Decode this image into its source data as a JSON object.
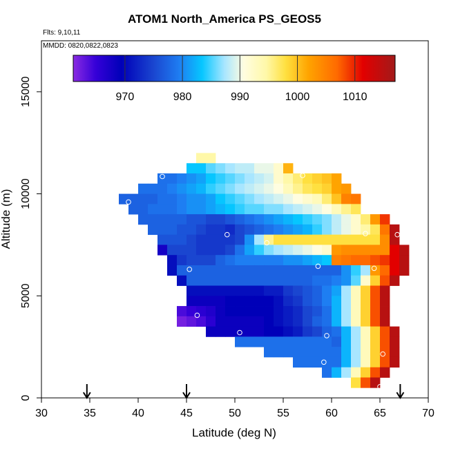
{
  "chart_data": {
    "type": "heatmap",
    "title": "ATOM1 North_America PS_GEOS5",
    "notes": {
      "flights": "Flts: 9,10,11",
      "dates": "MMDD: 0820,0822,0823"
    },
    "xlabel": "Latitude (deg N)",
    "ylabel": "Altitude (m)",
    "xlim": [
      30,
      70
    ],
    "ylim": [
      0,
      17500
    ],
    "x_ticks": [
      30,
      35,
      40,
      45,
      50,
      55,
      60,
      65,
      70
    ],
    "y_ticks": [
      0,
      5000,
      10000,
      15000
    ],
    "y_tick_labels": [
      "0",
      "5000",
      "10000",
      "15000"
    ],
    "colorbar": {
      "min": 961,
      "max": 1017,
      "ticks": [
        970,
        980,
        990,
        1000,
        1010
      ],
      "tick_labels": [
        "970",
        "980",
        "990",
        "1000",
        "1010"
      ]
    },
    "cell": {
      "dlat": 1.0,
      "dalt": 500
    },
    "profile_markers_lat": [
      34.7,
      45.0,
      67.1
    ],
    "flight_points": [
      {
        "lat": 42.5,
        "alt": 10850
      },
      {
        "lat": 57.0,
        "alt": 10900
      },
      {
        "lat": 39.0,
        "alt": 9600
      },
      {
        "lat": 49.2,
        "alt": 8000
      },
      {
        "lat": 53.3,
        "alt": 7600
      },
      {
        "lat": 63.5,
        "alt": 8050
      },
      {
        "lat": 66.8,
        "alt": 8000
      },
      {
        "lat": 45.3,
        "alt": 6300
      },
      {
        "lat": 58.6,
        "alt": 6450
      },
      {
        "lat": 64.4,
        "alt": 6350
      },
      {
        "lat": 46.1,
        "alt": 4050
      },
      {
        "lat": 50.5,
        "alt": 3200
      },
      {
        "lat": 59.5,
        "alt": 3050
      },
      {
        "lat": 65.3,
        "alt": 2150
      },
      {
        "lat": 59.2,
        "alt": 1750
      },
      {
        "lat": 65.0,
        "alt": 550
      }
    ],
    "rows": [
      {
        "alt": 11750,
        "lat0": 46.5,
        "values": [
          994,
          994
        ]
      },
      {
        "alt": 11250,
        "lat0": 45.5,
        "values": [
          983,
          983,
          985,
          986,
          987,
          988,
          988,
          990,
          990,
          992,
          1001
        ]
      },
      {
        "alt": 10750,
        "lat0": 42.5,
        "values": [
          978,
          978,
          979,
          980,
          981,
          983,
          984,
          985,
          986,
          987,
          988,
          989,
          992,
          994,
          996,
          998,
          999,
          1000,
          1002
        ]
      },
      {
        "alt": 10250,
        "lat0": 40.5,
        "values": [
          978,
          978,
          978,
          979,
          980,
          981,
          982,
          984,
          985,
          986,
          987,
          988,
          989,
          990,
          991,
          993,
          995,
          997,
          998,
          999,
          1002,
          1003
        ]
      },
      {
        "alt": 9750,
        "lat0": 38.5,
        "values": [
          977,
          977,
          977,
          977,
          978,
          978,
          979,
          980,
          980,
          981,
          983,
          984,
          985,
          986,
          987,
          988,
          989,
          990,
          991,
          992,
          993,
          996,
          1000,
          1005,
          1006
        ]
      },
      {
        "alt": 9250,
        "lat0": 39.5,
        "values": [
          977,
          977,
          978,
          978,
          978,
          979,
          980,
          980,
          981,
          982,
          983,
          984,
          985,
          985,
          986,
          986,
          987,
          988,
          989,
          990,
          991,
          993,
          995,
          997
        ]
      },
      {
        "alt": 8750,
        "lat0": 40.5,
        "values": [
          977,
          977,
          977,
          977,
          977,
          976,
          976,
          975,
          975,
          976,
          977,
          978,
          979,
          980,
          981,
          982,
          983,
          984,
          985,
          986,
          988,
          990,
          992,
          996,
          1003,
          1009
        ]
      },
      {
        "alt": 8250,
        "lat0": 41.5,
        "values": [
          977,
          977,
          977,
          976,
          976,
          975,
          974,
          974,
          973,
          975,
          976,
          977,
          978,
          979,
          980,
          981,
          982,
          984,
          986,
          988,
          990,
          992,
          994,
          997,
          1006,
          1015
        ]
      },
      {
        "alt": 7750,
        "lat0": 42.5,
        "values": [
          976,
          976,
          976,
          975,
          974,
          974,
          974,
          974,
          975,
          980,
          987,
          995,
          998,
          998,
          998,
          998,
          998,
          998,
          998,
          998,
          998,
          998,
          998,
          1004,
          1015
        ]
      },
      {
        "alt": 7250,
        "lat0": 42.5,
        "values": [
          968,
          975,
          975,
          975,
          974,
          974,
          974,
          975,
          978,
          981,
          984,
          986,
          987,
          988,
          989,
          990,
          991,
          992,
          1003,
          1004,
          1004,
          1004,
          1004,
          1004,
          1011,
          1015
        ]
      },
      {
        "alt": 6750,
        "lat0": 43.5,
        "values": [
          971,
          974,
          975,
          975,
          975,
          977,
          978,
          979,
          979,
          979,
          979,
          979,
          980,
          980,
          981,
          982,
          983,
          1005,
          1006,
          1007,
          1007,
          1008,
          1009,
          1011,
          1015
        ]
      },
      {
        "alt": 6250,
        "lat0": 43.5,
        "values": [
          971,
          977,
          977,
          977,
          977,
          977,
          977,
          977,
          977,
          977,
          977,
          977,
          977,
          977,
          977,
          977,
          977,
          977,
          980,
          984,
          987,
          1003,
          1007,
          1011,
          1015
        ]
      },
      {
        "alt": 5750,
        "lat0": 44.5,
        "values": [
          971,
          977,
          977,
          977,
          977,
          977,
          977,
          977,
          977,
          977,
          977,
          977,
          977,
          977,
          978,
          978,
          979,
          980,
          985,
          992,
          999,
          1008,
          1015
        ]
      },
      {
        "alt": 5250,
        "lat0": 45.5,
        "values": [
          971,
          971,
          971,
          971,
          971,
          971,
          971,
          971,
          972,
          972,
          974,
          975,
          976,
          977,
          979,
          981,
          987,
          993,
          999,
          1008,
          1015
        ]
      },
      {
        "alt": 4750,
        "lat0": 45.5,
        "values": [
          969,
          969,
          969,
          969,
          970,
          970,
          970,
          970,
          970,
          971,
          973,
          974,
          976,
          977,
          979,
          982,
          987,
          993,
          999,
          1008,
          1015
        ]
      },
      {
        "alt": 4250,
        "lat0": 44.5,
        "values": [
          964,
          965,
          966,
          967,
          969,
          970,
          970,
          970,
          970,
          970,
          971,
          972,
          973,
          975,
          976,
          978,
          982,
          987,
          993,
          999,
          1008,
          1015
        ]
      },
      {
        "alt": 3750,
        "lat0": 44.5,
        "values": [
          962,
          963,
          964,
          966,
          969,
          969,
          969,
          969,
          969,
          970,
          971,
          972,
          973,
          975,
          977,
          978,
          982,
          987,
          993,
          999,
          1008,
          1015
        ]
      },
      {
        "alt": 3250,
        "lat0": 47.5,
        "values": [
          969,
          969,
          969,
          969,
          969,
          969,
          970,
          970,
          971,
          972,
          974,
          975,
          977,
          978,
          982,
          987,
          993,
          999,
          1008,
          1015
        ]
      },
      {
        "alt": 2750,
        "lat0": 50.5,
        "values": [
          978,
          978,
          978,
          978,
          978,
          978,
          978,
          978,
          978,
          978,
          977,
          982,
          987,
          993,
          999,
          1008,
          1015
        ]
      },
      {
        "alt": 2250,
        "lat0": 53.5,
        "values": [
          978,
          978,
          978,
          978,
          978,
          978,
          978,
          978,
          982,
          987,
          993,
          999,
          1008,
          1015
        ]
      },
      {
        "alt": 1750,
        "lat0": 56.5,
        "values": [
          978,
          978,
          978,
          978,
          978,
          982,
          987,
          993,
          999,
          1008,
          1015
        ]
      },
      {
        "alt": 1250,
        "lat0": 59.5,
        "values": [
          978,
          982,
          987,
          993,
          999,
          1008,
          1015
        ]
      },
      {
        "alt": 750,
        "lat0": 62.5,
        "values": [
          998,
          1008,
          1015
        ]
      }
    ]
  }
}
